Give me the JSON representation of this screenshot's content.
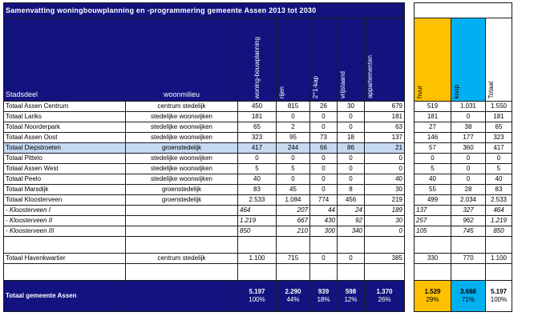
{
  "title": "Samenvatting woningbouwplanning en -programmering gemeente Assen 2013 tot 2030",
  "headers": {
    "stadsdeel": "Stadsdeel",
    "woonmilieu": "woonmilieu",
    "woningbouwplanning": "woning-bouwplanning",
    "rijen": "rijen",
    "twee_onder_een_kap": "2^1-kap",
    "vrijstaand": "vrijstaand",
    "appartementen": "appartementen",
    "huur": "huur",
    "koop": "koop",
    "totaal": "Totaal"
  },
  "rows": [
    {
      "name": "Totaal Assen Centrum",
      "milieu": "centrum stedelijk",
      "plan": "450",
      "rijen": "815",
      "kap": "26",
      "vrij": "30",
      "app": "679",
      "huur": "519",
      "koop": "1.031",
      "tot": "1.550"
    },
    {
      "name": "Totaal Lariks",
      "milieu": "stedelijke woonwijken",
      "plan": "181",
      "rijen": "0",
      "kap": "0",
      "vrij": "0",
      "app": "181",
      "huur": "181",
      "koop": "0",
      "tot": "181"
    },
    {
      "name": "Totaal Noorderpark",
      "milieu": "stedelijke woonwijken",
      "plan": "65",
      "rijen": "2",
      "kap": "0",
      "vrij": "0",
      "app": "63",
      "huur": "27",
      "koop": "38",
      "tot": "65"
    },
    {
      "name": "Totaal Assen Oost",
      "milieu": "stedelijke woonwijken",
      "plan": "323",
      "rijen": "95",
      "kap": "73",
      "vrij": "18",
      "app": "137",
      "huur": "146",
      "koop": "177",
      "tot": "323"
    },
    {
      "name": "Totaal Diepstroeten",
      "milieu": "groenstedelijk",
      "plan": "417",
      "rijen": "244",
      "kap": "66",
      "vrij": "86",
      "app": "21",
      "huur": "57",
      "koop": "360",
      "tot": "417",
      "highlight": true
    },
    {
      "name": "Totaal Pittelo",
      "milieu": "stedelijke woonwijken",
      "plan": "0",
      "rijen": "0",
      "kap": "0",
      "vrij": "0",
      "app": "0",
      "huur": "0",
      "koop": "0",
      "tot": "0"
    },
    {
      "name": "Totaal Assen West",
      "milieu": "stedelijke woonwijken",
      "plan": "5",
      "rijen": "5",
      "kap": "0",
      "vrij": "0",
      "app": "0",
      "huur": "5",
      "koop": "0",
      "tot": "5"
    },
    {
      "name": "Totaal Peelo",
      "milieu": "stedelijke woonwijken",
      "plan": "40",
      "rijen": "0",
      "kap": "0",
      "vrij": "0",
      "app": "40",
      "huur": "40",
      "koop": "0",
      "tot": "40"
    },
    {
      "name": "Totaal Marsdijk",
      "milieu": "groenstedelijk",
      "plan": "83",
      "rijen": "45",
      "kap": "0",
      "vrij": "8",
      "app": "30",
      "huur": "55",
      "koop": "28",
      "tot": "83"
    },
    {
      "name": "Totaal Kloosterveen",
      "milieu": "groenstedelijk",
      "plan": "2.533",
      "rijen": "1.084",
      "kap": "774",
      "vrij": "456",
      "app": "219",
      "huur": "499",
      "koop": "2.034",
      "tot": "2.533"
    }
  ],
  "subrows": [
    {
      "name": "- Kloosterveen I",
      "plan": "464",
      "rijen": "207",
      "kap": "44",
      "vrij": "24",
      "app": "189",
      "huur": "137",
      "koop": "327",
      "tot": "464"
    },
    {
      "name": "- Kloosterveen II",
      "plan": "1.219",
      "rijen": "667",
      "kap": "430",
      "vrij": "92",
      "app": "30",
      "huur": "257",
      "koop": "962",
      "tot": "1.219"
    },
    {
      "name": "- Kloosterveen III",
      "plan": "850",
      "rijen": "210",
      "kap": "300",
      "vrij": "340",
      "app": "0",
      "huur": "105",
      "koop": "745",
      "tot": "850"
    }
  ],
  "havenkwartier": {
    "name": "Totaal Havenkwartier",
    "milieu": "centrum stedelijk",
    "plan": "1.100",
    "rijen": "715",
    "kap": "0",
    "vrij": "0",
    "app": "385",
    "huur": "330",
    "koop": "770",
    "tot": "1.100"
  },
  "total": {
    "name": "Totaal gemeente Assen",
    "plan": "5.197",
    "plan_pct": "100%",
    "rijen": "2.290",
    "rijen_pct": "44%",
    "kap": "939",
    "kap_pct": "18%",
    "vrij": "598",
    "vrij_pct": "12%",
    "app": "1.370",
    "app_pct": "26%",
    "huur": "1.529",
    "huur_pct": "29%",
    "koop": "3.668",
    "koop_pct": "71%",
    "tot": "5.197",
    "tot_pct": "100%"
  },
  "colors": {
    "navy": "#13137f",
    "highlight": "#c5d9f1",
    "huur": "#ffc000",
    "koop": "#00b0f0"
  }
}
